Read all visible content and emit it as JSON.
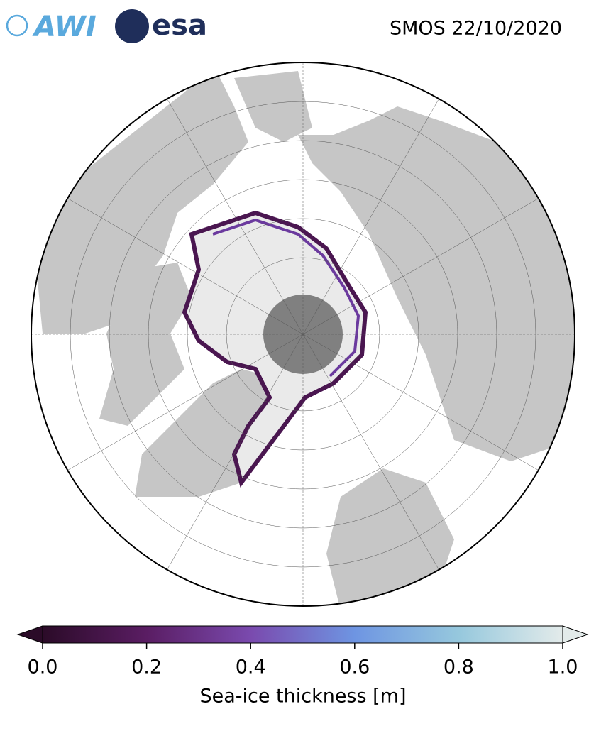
{
  "header": {
    "logos": [
      "AWI",
      "esa"
    ],
    "title": "SMOS 22/10/2020"
  },
  "colorbar": {
    "label": "Sea-ice thickness [m]",
    "lim": [
      0,
      1
    ],
    "extend": "both",
    "colors": [
      "#2b0b28",
      "#5a1d63",
      "#7a4aae",
      "#6e95e2",
      "#96c8dd",
      "#e3ebea"
    ],
    "ticks": [
      {
        "value": 0,
        "label": "0.0"
      },
      {
        "value": 0.2,
        "label": "0.2"
      },
      {
        "value": 0.4,
        "label": "0.4"
      },
      {
        "value": 0.6,
        "label": "0.6"
      },
      {
        "value": 0.8,
        "label": "0.8"
      },
      {
        "value": 1,
        "label": "1.0"
      }
    ]
  }
}
